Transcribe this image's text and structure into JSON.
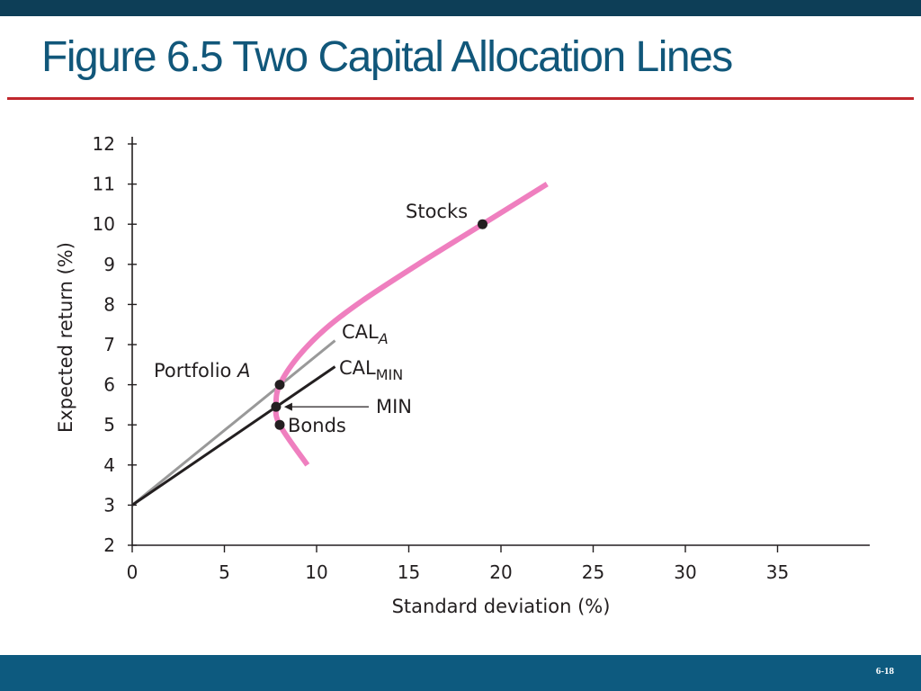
{
  "slide": {
    "title": "Figure 6.5 Two Capital Allocation Lines",
    "page_number": "6-18"
  },
  "colors": {
    "frontier": "#ef7fbf",
    "cal_a": "#999999",
    "cal_min": "#231f20",
    "title": "#11577a",
    "rule": "#c0272d",
    "header_bar": "#0d3e57",
    "footer_bar": "#0d5a7f"
  },
  "chart_data": {
    "type": "line",
    "xlabel": "Standard deviation (%)",
    "ylabel": "Expected return (%)",
    "xlim": [
      0,
      40
    ],
    "ylim": [
      2,
      12
    ],
    "x_ticks": [
      0,
      5,
      10,
      15,
      20,
      25,
      30,
      35
    ],
    "y_ticks": [
      2,
      3,
      4,
      5,
      6,
      7,
      8,
      9,
      10,
      11,
      12
    ],
    "grid": false,
    "legend": "none",
    "series": [
      {
        "key": "frontier",
        "points": [
          [
            9.5,
            4.0
          ],
          [
            8.0,
            5.0
          ],
          [
            7.8,
            5.5
          ],
          [
            8.0,
            6.0
          ],
          [
            9.0,
            6.7
          ],
          [
            10.5,
            7.4
          ],
          [
            12.5,
            8.1
          ],
          [
            15.5,
            9.0
          ],
          [
            19.0,
            10.0
          ],
          [
            22.5,
            11.0
          ]
        ]
      },
      {
        "key": "cal_a",
        "name": "CAL",
        "subscript": "A",
        "points": [
          [
            0,
            3.0
          ],
          [
            11.0,
            7.1
          ]
        ]
      },
      {
        "key": "cal_min",
        "name": "CAL",
        "subscript": "MIN",
        "points": [
          [
            0,
            3.0
          ],
          [
            11.0,
            6.45
          ]
        ]
      }
    ],
    "points": [
      {
        "key": "stocks",
        "label": "Stocks",
        "x": 19.0,
        "y": 10.0
      },
      {
        "key": "portfolio-a",
        "label": "Portfolio ",
        "label_italic": "A",
        "x": 8.0,
        "y": 6.0
      },
      {
        "key": "min",
        "label": "MIN",
        "x": 7.8,
        "y": 5.45
      },
      {
        "key": "bonds",
        "label": "Bonds",
        "x": 8.0,
        "y": 5.0
      }
    ]
  }
}
